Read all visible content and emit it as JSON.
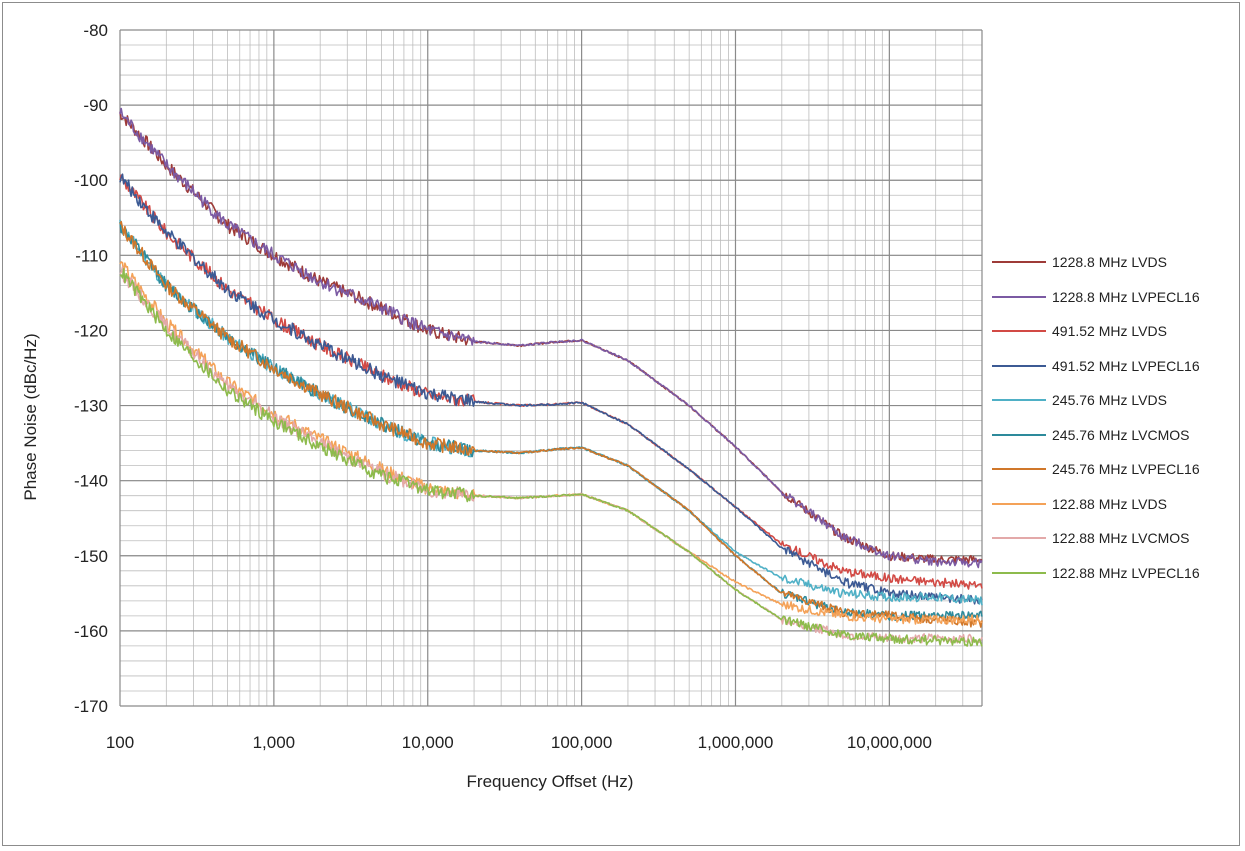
{
  "chart_data": {
    "type": "line",
    "title": "",
    "xlabel": "Frequency Offset (Hz)",
    "ylabel": "Phase Noise (dBc/Hz)",
    "xscale": "log",
    "xlim": [
      100,
      40000000
    ],
    "ylim": [
      -170,
      -80
    ],
    "x_ticks": [
      100,
      1000,
      10000,
      100000,
      1000000,
      10000000
    ],
    "x_tick_labels": [
      "100",
      "1,000",
      "10,000",
      "100,000",
      "1,000,000",
      "10,000,000"
    ],
    "y_ticks": [
      -80,
      -90,
      -100,
      -110,
      -120,
      -130,
      -140,
      -150,
      -160,
      -170
    ],
    "grid": true,
    "minor_grid": true,
    "legend_position": "right",
    "x": [
      100,
      200,
      500,
      1000,
      2000,
      5000,
      10000,
      20000,
      40000,
      70000,
      100000,
      200000,
      500000,
      1000000,
      2000000,
      5000000,
      10000000,
      20000000,
      40000000
    ],
    "series": [
      {
        "name": "1228.8 MHz LVDS",
        "color": "#9e3b38",
        "values": [
          -91,
          -98,
          -106,
          -110,
          -113.5,
          -117,
          -120,
          -121.5,
          -122,
          -121.5,
          -121.3,
          -124,
          -130,
          -135.5,
          -141.5,
          -147.5,
          -150,
          -150.5,
          -150.5
        ]
      },
      {
        "name": "1228.8 MHz LVPECL16",
        "color": "#7b5aa3",
        "values": [
          -91,
          -98,
          -106,
          -110,
          -113.5,
          -117,
          -120,
          -121.5,
          -122,
          -121.5,
          -121.3,
          -124,
          -130,
          -135.5,
          -141.5,
          -147.5,
          -150,
          -150.8,
          -151
        ]
      },
      {
        "name": "491.52 MHz LVDS",
        "color": "#d24a45",
        "values": [
          -99.5,
          -107,
          -114.5,
          -118.5,
          -122,
          -126,
          -128.5,
          -129.5,
          -130,
          -129.8,
          -129.6,
          -132.5,
          -138.5,
          -143.5,
          -148.5,
          -152,
          -153,
          -153.5,
          -154
        ]
      },
      {
        "name": "491.52 MHz LVPECL16",
        "color": "#3c5a94",
        "values": [
          -99.5,
          -107,
          -114.5,
          -118.5,
          -122,
          -126,
          -128.5,
          -129.5,
          -130,
          -129.8,
          -129.6,
          -132.5,
          -138.5,
          -143.5,
          -149,
          -153.5,
          -155,
          -155.5,
          -156
        ]
      },
      {
        "name": "245.76 MHz LVDS",
        "color": "#4fb0c6",
        "values": [
          -106,
          -114,
          -121,
          -125,
          -128.5,
          -132.5,
          -135,
          -136,
          -136.3,
          -135.8,
          -135.6,
          -138,
          -144,
          -149.5,
          -153,
          -155,
          -155.5,
          -155.5,
          -156
        ]
      },
      {
        "name": "245.76 MHz LVCMOS",
        "color": "#2d8a9b",
        "values": [
          -106,
          -114,
          -121,
          -125,
          -128.5,
          -132.5,
          -135,
          -136,
          -136.3,
          -135.8,
          -135.6,
          -138,
          -144,
          -150,
          -155,
          -157.5,
          -158,
          -158,
          -158
        ]
      },
      {
        "name": "245.76 MHz LVPECL16",
        "color": "#d0772a",
        "values": [
          -106,
          -114,
          -121,
          -125,
          -128.5,
          -132.5,
          -135,
          -136,
          -136.3,
          -135.8,
          -135.6,
          -138,
          -144,
          -150,
          -155,
          -157.5,
          -158,
          -158.5,
          -159
        ]
      },
      {
        "name": "122.88 MHz LVDS",
        "color": "#f4a258",
        "values": [
          -111,
          -119,
          -127,
          -131,
          -134.5,
          -138.5,
          -141,
          -142,
          -142.3,
          -142,
          -141.8,
          -144,
          -149.5,
          -153.5,
          -156.5,
          -158,
          -158.5,
          -158.5,
          -158.5
        ]
      },
      {
        "name": "122.88 MHz LVCMOS",
        "color": "#e3a9a9",
        "values": [
          -112,
          -119.5,
          -127.5,
          -131.5,
          -135,
          -139,
          -141.2,
          -142,
          -142.3,
          -142,
          -141.8,
          -144,
          -149.5,
          -154.5,
          -158.5,
          -160.5,
          -161,
          -161,
          -161
        ]
      },
      {
        "name": "122.88 MHz LVPECL16",
        "color": "#8dbb4c",
        "values": [
          -112,
          -120,
          -128,
          -132,
          -135.5,
          -139.3,
          -141.3,
          -142,
          -142.3,
          -142,
          -141.8,
          -144,
          -149.5,
          -154.5,
          -158.5,
          -160.5,
          -161,
          -161.3,
          -161.5
        ]
      }
    ]
  }
}
